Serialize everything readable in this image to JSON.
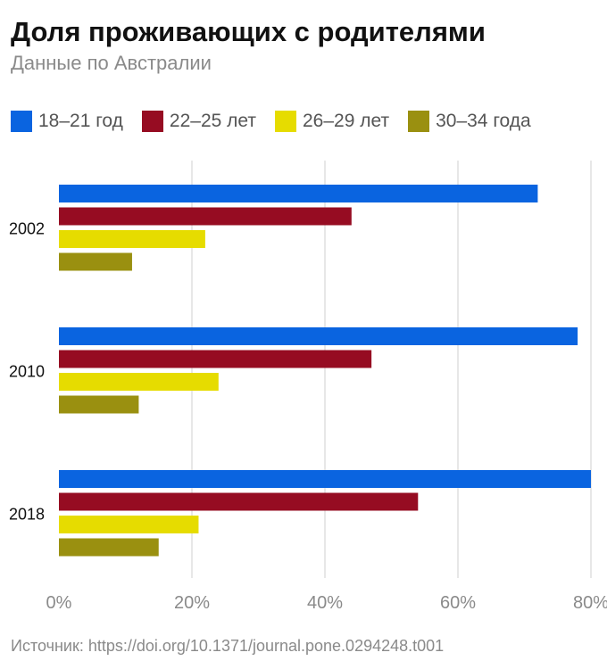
{
  "header": {
    "title": "Доля проживающих с родителями",
    "subtitle": "Данные по Австралии"
  },
  "source": "Источник: https://doi.org/10.1371/journal.pone.0294248.t001",
  "chart_data": {
    "type": "bar",
    "orientation": "horizontal",
    "title": "Доля проживающих с родителями",
    "subtitle": "Данные по Австралии",
    "categories": [
      "2002",
      "2010",
      "2018"
    ],
    "series": [
      {
        "name": "18–21 год",
        "color": "#0a64e0",
        "values": [
          72,
          78,
          80
        ]
      },
      {
        "name": "22–25 лет",
        "color": "#960c22",
        "values": [
          44,
          47,
          54
        ]
      },
      {
        "name": "26–29 лет",
        "color": "#e6dc00",
        "values": [
          22,
          24,
          21
        ]
      },
      {
        "name": "30–34 года",
        "color": "#9a9010",
        "values": [
          11,
          12,
          15
        ]
      }
    ],
    "xlim": [
      0,
      80
    ],
    "xticks": [
      0,
      20,
      40,
      60,
      80
    ],
    "xtick_labels": [
      "0%",
      "20%",
      "40%",
      "60%",
      "80%"
    ],
    "grid": "vertical",
    "legend_position": "top"
  }
}
